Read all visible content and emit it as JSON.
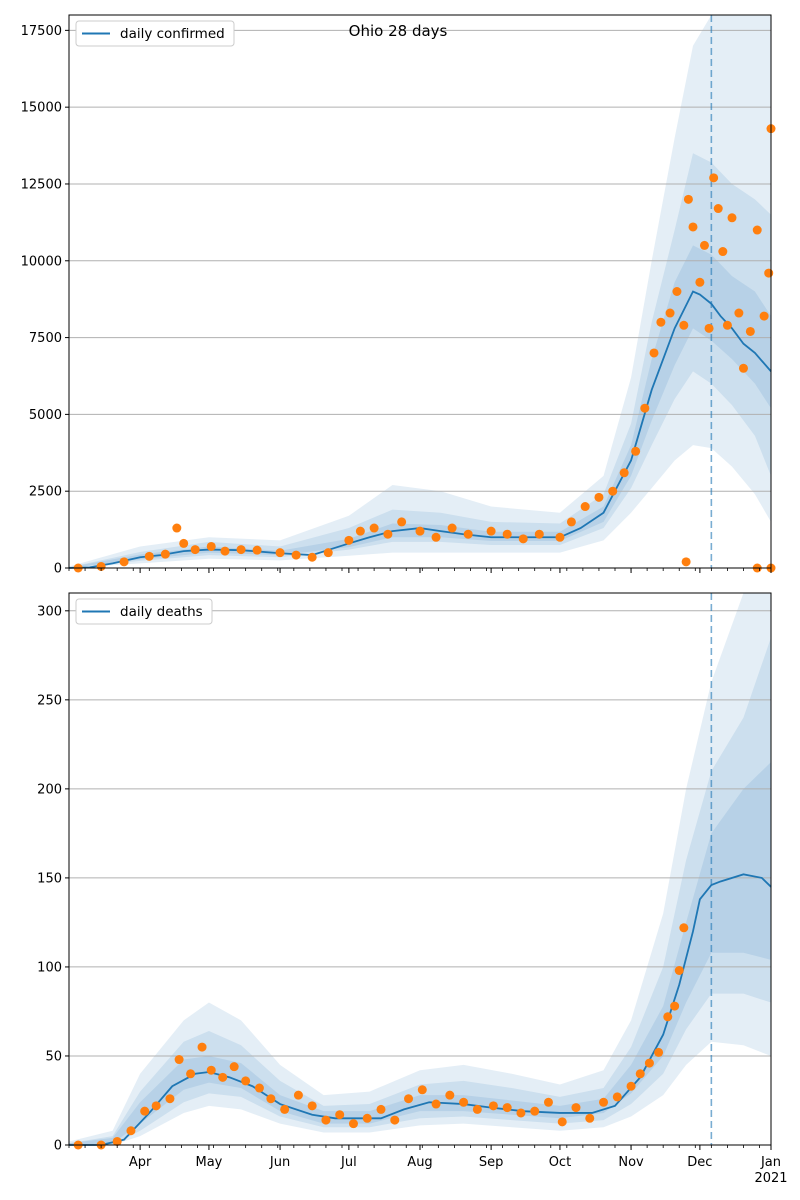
{
  "figure": {
    "title": "Ohio 28 days",
    "colors": {
      "line": "#1f77b4",
      "points": "#ff7f0e",
      "band": "#1f77b4",
      "grid": "#b0b0b0",
      "marker_line": "#1f77b4"
    }
  },
  "chart_data": [
    {
      "type": "line",
      "title": "Ohio 28 days",
      "legend": {
        "label": "daily confirmed",
        "placement": "upper-left"
      },
      "xlabel": "",
      "ylabel": "",
      "x_range": [
        "2020-03-01",
        "2021-01-01"
      ],
      "ylim": [
        0,
        18000
      ],
      "yticks": [
        0,
        2500,
        5000,
        7500,
        10000,
        12500,
        15000,
        17500
      ],
      "ytick_labels": [
        "0",
        "2500",
        "5000",
        "7500",
        "10000",
        "12500",
        "15000",
        "17500"
      ],
      "grid": "horizontal",
      "vline_date": "2020-12-06",
      "series": [
        {
          "name": "daily confirmed",
          "kind": "model median",
          "x": [
            "2020-03-01",
            "2020-03-10",
            "2020-03-20",
            "2020-04-01",
            "2020-04-10",
            "2020-04-20",
            "2020-05-01",
            "2020-05-15",
            "2020-06-01",
            "2020-06-15",
            "2020-07-01",
            "2020-07-10",
            "2020-07-20",
            "2020-08-01",
            "2020-08-10",
            "2020-08-20",
            "2020-09-01",
            "2020-09-15",
            "2020-10-01",
            "2020-10-10",
            "2020-10-20",
            "2020-11-01",
            "2020-11-10",
            "2020-11-20",
            "2020-11-28",
            "2020-12-01",
            "2020-12-06",
            "2020-12-10",
            "2020-12-15",
            "2020-12-20",
            "2020-12-25",
            "2021-01-01"
          ],
          "y": [
            0,
            20,
            150,
            350,
            420,
            550,
            600,
            580,
            480,
            420,
            800,
            1000,
            1200,
            1300,
            1200,
            1100,
            1000,
            1000,
            1000,
            1300,
            1800,
            3500,
            5800,
            7800,
            9000,
            8900,
            8600,
            8200,
            7800,
            7300,
            7000,
            6400
          ]
        },
        {
          "name": "observed",
          "kind": "points",
          "x": [
            "2020-03-05",
            "2020-03-15",
            "2020-03-25",
            "2020-04-05",
            "2020-04-12",
            "2020-04-17",
            "2020-04-20",
            "2020-04-25",
            "2020-05-02",
            "2020-05-08",
            "2020-05-15",
            "2020-05-22",
            "2020-06-01",
            "2020-06-08",
            "2020-06-15",
            "2020-06-22",
            "2020-07-01",
            "2020-07-06",
            "2020-07-12",
            "2020-07-18",
            "2020-07-24",
            "2020-08-01",
            "2020-08-08",
            "2020-08-15",
            "2020-08-22",
            "2020-09-01",
            "2020-09-08",
            "2020-09-15",
            "2020-09-22",
            "2020-10-01",
            "2020-10-06",
            "2020-10-12",
            "2020-10-18",
            "2020-10-24",
            "2020-10-29",
            "2020-11-03",
            "2020-11-07",
            "2020-11-11",
            "2020-11-14",
            "2020-11-18",
            "2020-11-21",
            "2020-11-24",
            "2020-11-26",
            "2020-11-28",
            "2020-12-01",
            "2020-12-03",
            "2020-12-05",
            "2020-12-07",
            "2020-12-09",
            "2020-12-11",
            "2020-12-13",
            "2020-12-15",
            "2020-12-18",
            "2020-12-20",
            "2020-12-23",
            "2020-12-26",
            "2020-12-29",
            "2020-12-31",
            "2021-01-01",
            "2020-11-25",
            "2020-12-26",
            "2021-01-01"
          ],
          "y": [
            0,
            50,
            200,
            380,
            450,
            1300,
            800,
            600,
            700,
            550,
            600,
            580,
            500,
            420,
            350,
            500,
            900,
            1200,
            1300,
            1100,
            1500,
            1200,
            1000,
            1300,
            1100,
            1200,
            1100,
            950,
            1100,
            1000,
            1500,
            2000,
            2300,
            2500,
            3100,
            3800,
            5200,
            7000,
            8000,
            8300,
            9000,
            7900,
            12000,
            11100,
            9300,
            10500,
            7800,
            12700,
            11700,
            10300,
            7900,
            11400,
            8300,
            6500,
            7700,
            11000,
            8200,
            9600,
            14300,
            200,
            0,
            0
          ]
        }
      ],
      "bands": [
        {
          "name": "outer",
          "x": [
            "2020-03-01",
            "2020-04-01",
            "2020-05-01",
            "2020-06-01",
            "2020-07-01",
            "2020-07-20",
            "2020-08-10",
            "2020-09-01",
            "2020-10-01",
            "2020-10-20",
            "2020-11-01",
            "2020-11-10",
            "2020-11-20",
            "2020-11-28",
            "2020-12-06",
            "2020-12-15",
            "2020-12-25",
            "2021-01-01"
          ],
          "lo": [
            0,
            150,
            300,
            250,
            400,
            500,
            500,
            500,
            500,
            900,
            1800,
            2600,
            3500,
            4000,
            3900,
            3300,
            2400,
            1500
          ],
          "hi": [
            50,
            700,
            1000,
            900,
            1700,
            2700,
            2500,
            2000,
            1800,
            3000,
            6200,
            10000,
            14000,
            17000,
            18000,
            18000,
            18000,
            18000
          ]
        },
        {
          "name": "mid",
          "x": [
            "2020-03-01",
            "2020-04-01",
            "2020-05-01",
            "2020-06-01",
            "2020-07-01",
            "2020-07-20",
            "2020-08-10",
            "2020-09-01",
            "2020-10-01",
            "2020-10-20",
            "2020-11-01",
            "2020-11-10",
            "2020-11-20",
            "2020-11-28",
            "2020-12-06",
            "2020-12-15",
            "2020-12-25",
            "2021-01-01"
          ],
          "lo": [
            0,
            230,
            420,
            350,
            600,
            850,
            850,
            750,
            750,
            1300,
            2600,
            4000,
            5500,
            6400,
            6000,
            5300,
            4300,
            3000
          ],
          "hi": [
            30,
            520,
            850,
            700,
            1300,
            1900,
            1800,
            1500,
            1450,
            2400,
            4700,
            8000,
            11000,
            13500,
            13200,
            12500,
            12000,
            11500
          ]
        },
        {
          "name": "inner",
          "x": [
            "2020-03-01",
            "2020-04-01",
            "2020-05-01",
            "2020-06-01",
            "2020-07-01",
            "2020-07-20",
            "2020-08-10",
            "2020-09-01",
            "2020-10-01",
            "2020-10-20",
            "2020-11-01",
            "2020-11-10",
            "2020-11-20",
            "2020-11-28",
            "2020-12-06",
            "2020-12-15",
            "2020-12-25",
            "2021-01-01"
          ],
          "lo": [
            0,
            280,
            500,
            420,
            680,
            1000,
            1000,
            880,
            880,
            1500,
            3000,
            4800,
            6600,
            7800,
            7400,
            6800,
            6000,
            5200
          ],
          "hi": [
            25,
            440,
            700,
            560,
            950,
            1450,
            1400,
            1180,
            1180,
            2000,
            4000,
            6800,
            9300,
            10500,
            10200,
            9500,
            9000,
            8200
          ]
        }
      ]
    },
    {
      "type": "line",
      "title": "",
      "legend": {
        "label": "daily deaths",
        "placement": "upper-left"
      },
      "xlabel": "",
      "ylabel": "",
      "x_range": [
        "2020-03-01",
        "2021-01-01"
      ],
      "ylim": [
        0,
        310
      ],
      "yticks": [
        0,
        50,
        100,
        150,
        200,
        250,
        300
      ],
      "ytick_labels": [
        "0",
        "50",
        "100",
        "150",
        "200",
        "250",
        "300"
      ],
      "xticks": [
        "2020-04-01",
        "2020-05-01",
        "2020-06-01",
        "2020-07-01",
        "2020-08-01",
        "2020-09-01",
        "2020-10-01",
        "2020-11-01",
        "2020-12-01",
        "2021-01-01"
      ],
      "xtick_labels": [
        "Apr",
        "May",
        "Jun",
        "Jul",
        "Aug",
        "Sep",
        "Oct",
        "Nov",
        "Dec",
        "Jan"
      ],
      "year_label": "2021",
      "grid": "horizontal",
      "vline_date": "2020-12-06",
      "series": [
        {
          "name": "daily deaths",
          "kind": "model median",
          "x": [
            "2020-03-01",
            "2020-03-15",
            "2020-03-25",
            "2020-04-05",
            "2020-04-15",
            "2020-04-25",
            "2020-05-01",
            "2020-05-10",
            "2020-05-20",
            "2020-06-01",
            "2020-06-15",
            "2020-06-25",
            "2020-07-05",
            "2020-07-15",
            "2020-07-25",
            "2020-08-05",
            "2020-08-20",
            "2020-09-01",
            "2020-09-15",
            "2020-10-01",
            "2020-10-15",
            "2020-10-25",
            "2020-11-05",
            "2020-11-15",
            "2020-11-22",
            "2020-11-28",
            "2020-12-01",
            "2020-12-06",
            "2020-12-10",
            "2020-12-20",
            "2020-12-28",
            "2021-01-01"
          ],
          "y": [
            0,
            0,
            3,
            18,
            33,
            40,
            41,
            38,
            33,
            23,
            17,
            15,
            15,
            15,
            20,
            24,
            23,
            21,
            19,
            18,
            18,
            22,
            38,
            62,
            90,
            120,
            138,
            146,
            148,
            152,
            150,
            145
          ]
        },
        {
          "name": "observed",
          "kind": "points",
          "x": [
            "2020-03-05",
            "2020-03-15",
            "2020-03-22",
            "2020-03-28",
            "2020-04-03",
            "2020-04-08",
            "2020-04-14",
            "2020-04-18",
            "2020-04-23",
            "2020-04-28",
            "2020-05-02",
            "2020-05-07",
            "2020-05-12",
            "2020-05-17",
            "2020-05-23",
            "2020-05-28",
            "2020-06-03",
            "2020-06-09",
            "2020-06-15",
            "2020-06-21",
            "2020-06-27",
            "2020-07-03",
            "2020-07-09",
            "2020-07-15",
            "2020-07-21",
            "2020-07-27",
            "2020-08-02",
            "2020-08-08",
            "2020-08-14",
            "2020-08-20",
            "2020-08-26",
            "2020-09-02",
            "2020-09-08",
            "2020-09-14",
            "2020-09-20",
            "2020-09-26",
            "2020-10-02",
            "2020-10-08",
            "2020-10-14",
            "2020-10-20",
            "2020-10-26",
            "2020-11-01",
            "2020-11-05",
            "2020-11-09",
            "2020-11-13",
            "2020-11-17",
            "2020-11-20",
            "2020-11-22",
            "2020-11-24"
          ],
          "y": [
            0,
            0,
            2,
            8,
            19,
            22,
            26,
            48,
            40,
            55,
            42,
            38,
            44,
            36,
            32,
            26,
            20,
            28,
            22,
            14,
            17,
            12,
            15,
            20,
            14,
            26,
            31,
            23,
            28,
            24,
            20,
            22,
            21,
            18,
            19,
            24,
            13,
            21,
            15,
            24,
            27,
            33,
            40,
            46,
            52,
            72,
            78,
            98,
            122
          ]
        }
      ],
      "bands": [
        {
          "name": "outer",
          "x": [
            "2020-03-01",
            "2020-03-20",
            "2020-04-01",
            "2020-04-20",
            "2020-05-01",
            "2020-05-15",
            "2020-06-01",
            "2020-06-20",
            "2020-07-10",
            "2020-08-01",
            "2020-08-20",
            "2020-09-10",
            "2020-10-01",
            "2020-10-20",
            "2020-11-01",
            "2020-11-15",
            "2020-11-25",
            "2020-12-06",
            "2020-12-20",
            "2021-01-01"
          ],
          "lo": [
            0,
            0,
            5,
            18,
            22,
            20,
            12,
            7,
            7,
            11,
            12,
            10,
            8,
            10,
            16,
            28,
            45,
            58,
            56,
            50
          ],
          "hi": [
            2,
            8,
            40,
            70,
            80,
            70,
            45,
            28,
            30,
            42,
            45,
            40,
            34,
            42,
            70,
            130,
            200,
            260,
            310,
            310
          ]
        },
        {
          "name": "mid",
          "x": [
            "2020-03-01",
            "2020-03-20",
            "2020-04-01",
            "2020-04-20",
            "2020-05-01",
            "2020-05-15",
            "2020-06-01",
            "2020-06-20",
            "2020-07-10",
            "2020-08-01",
            "2020-08-20",
            "2020-09-10",
            "2020-10-01",
            "2020-10-20",
            "2020-11-01",
            "2020-11-15",
            "2020-11-25",
            "2020-12-06",
            "2020-12-20",
            "2021-01-01"
          ],
          "lo": [
            0,
            0,
            8,
            24,
            29,
            27,
            16,
            10,
            10,
            15,
            16,
            14,
            12,
            14,
            23,
            40,
            65,
            85,
            85,
            80
          ],
          "hi": [
            1,
            5,
            30,
            58,
            64,
            56,
            36,
            22,
            23,
            34,
            36,
            32,
            27,
            32,
            55,
            100,
            160,
            210,
            240,
            285
          ]
        },
        {
          "name": "inner",
          "x": [
            "2020-03-01",
            "2020-03-20",
            "2020-04-01",
            "2020-04-20",
            "2020-05-01",
            "2020-05-15",
            "2020-06-01",
            "2020-06-20",
            "2020-07-10",
            "2020-08-01",
            "2020-08-20",
            "2020-09-10",
            "2020-10-01",
            "2020-10-20",
            "2020-11-01",
            "2020-11-15",
            "2020-11-25",
            "2020-12-06",
            "2020-12-20",
            "2021-01-01"
          ],
          "lo": [
            0,
            1,
            12,
            31,
            35,
            32,
            19,
            12,
            12,
            19,
            19,
            17,
            15,
            18,
            29,
            50,
            80,
            108,
            108,
            104
          ],
          "hi": [
            1,
            4,
            24,
            48,
            50,
            46,
            28,
            19,
            19,
            28,
            28,
            25,
            22,
            26,
            45,
            78,
            125,
            175,
            200,
            215
          ]
        }
      ]
    }
  ]
}
